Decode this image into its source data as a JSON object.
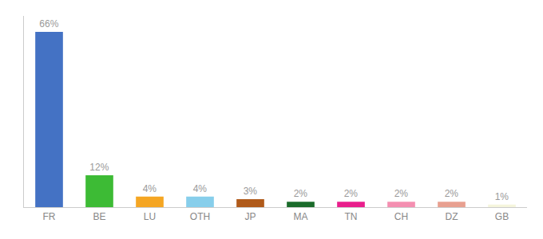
{
  "chart_data": {
    "type": "bar",
    "categories": [
      "FR",
      "BE",
      "LU",
      "OTH",
      "JP",
      "MA",
      "TN",
      "CH",
      "DZ",
      "GB"
    ],
    "values": [
      66,
      12,
      4,
      4,
      3,
      2,
      2,
      2,
      2,
      1
    ],
    "value_labels": [
      "66%",
      "12%",
      "4%",
      "4%",
      "3%",
      "2%",
      "2%",
      "2%",
      "2%",
      "1%"
    ],
    "colors": [
      "#4472c4",
      "#3dbb35",
      "#f5a623",
      "#87ceeb",
      "#b05a1a",
      "#1a6b2a",
      "#e91e8c",
      "#f48fb1",
      "#e8a090",
      "#f5f5dc"
    ],
    "ylim": [
      0,
      72
    ],
    "data_labels": true,
    "tick_labels": "x",
    "grid": false
  }
}
